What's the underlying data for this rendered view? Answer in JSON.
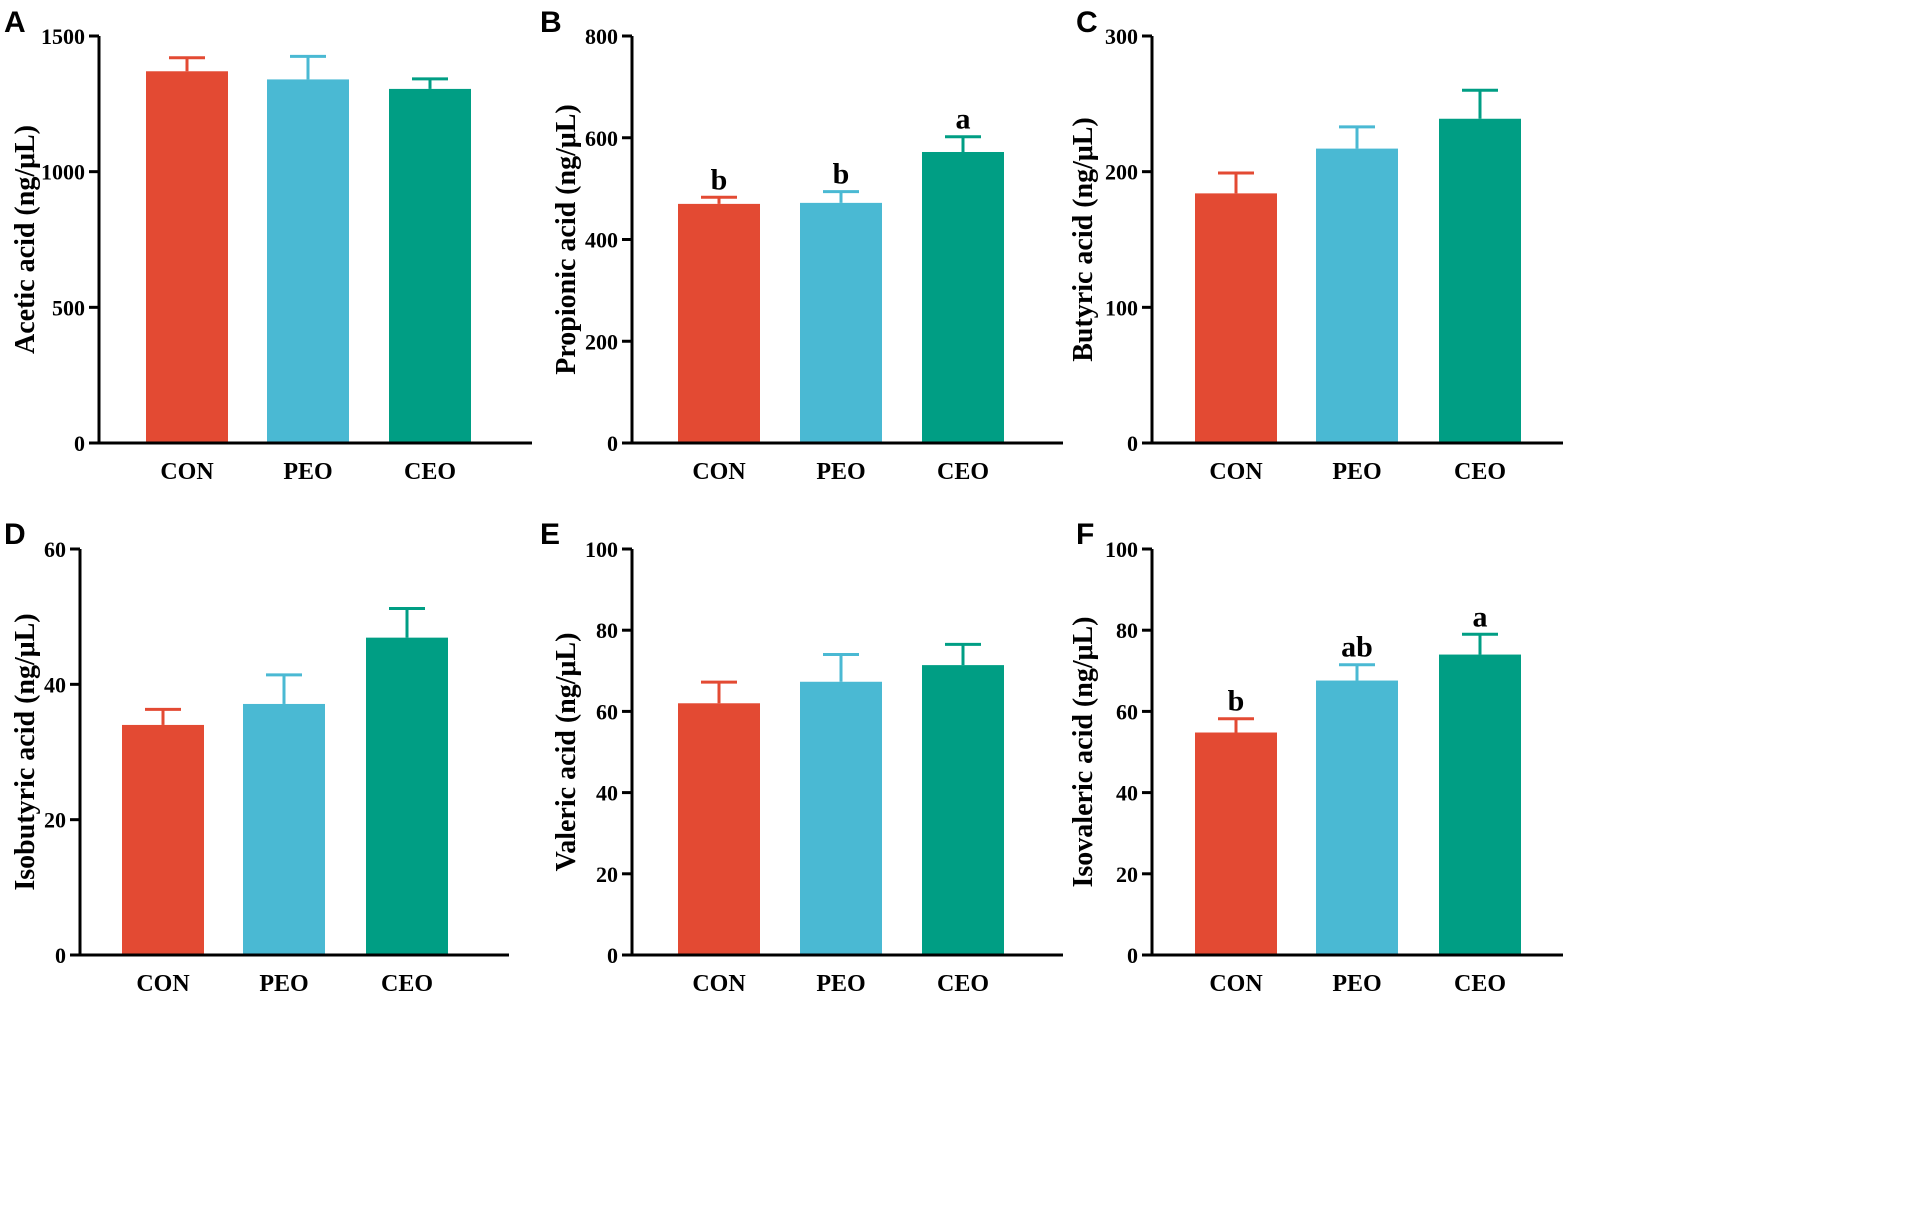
{
  "colors": {
    "CON": "#e34a33",
    "PEO": "#4ab9d3",
    "CEO": "#009e84"
  },
  "chart_data": [
    {
      "panel": "A",
      "type": "bar",
      "categories": [
        "CON",
        "PEO",
        "CEO"
      ],
      "values": [
        1370,
        1340,
        1305
      ],
      "errors": [
        50,
        85,
        37
      ],
      "significance": [
        "",
        "",
        ""
      ],
      "ylabel": "Acetic acid (ng/μL)",
      "ylim": [
        0,
        1500
      ],
      "yticks": [
        0,
        500,
        1000,
        1500
      ]
    },
    {
      "panel": "B",
      "type": "bar",
      "categories": [
        "CON",
        "PEO",
        "CEO"
      ],
      "values": [
        470,
        472,
        572
      ],
      "errors": [
        13,
        22,
        30
      ],
      "significance": [
        "b",
        "b",
        "a"
      ],
      "ylabel": "Propionic acid (ng/μL)",
      "ylim": [
        0,
        800
      ],
      "yticks": [
        0,
        200,
        400,
        600,
        800
      ]
    },
    {
      "panel": "C",
      "type": "bar",
      "categories": [
        "CON",
        "PEO",
        "CEO"
      ],
      "values": [
        184,
        217,
        239
      ],
      "errors": [
        15,
        16,
        21
      ],
      "significance": [
        "",
        "",
        ""
      ],
      "ylabel": "Butyric acid (ng/μL)",
      "ylim": [
        0,
        300
      ],
      "yticks": [
        0,
        100,
        200,
        300
      ]
    },
    {
      "panel": "D",
      "type": "bar",
      "categories": [
        "CON",
        "PEO",
        "CEO"
      ],
      "values": [
        34.0,
        37.1,
        46.9
      ],
      "errors": [
        2.3,
        4.3,
        4.3
      ],
      "significance": [
        "",
        "",
        ""
      ],
      "ylabel": "Isobutyric acid (ng/μL)",
      "ylim": [
        0,
        60
      ],
      "yticks": [
        0,
        20,
        40,
        60
      ]
    },
    {
      "panel": "E",
      "type": "bar",
      "categories": [
        "CON",
        "PEO",
        "CEO"
      ],
      "values": [
        62.0,
        67.3,
        71.4
      ],
      "errors": [
        5.2,
        6.7,
        5.1
      ],
      "significance": [
        "",
        "",
        ""
      ],
      "ylabel": "Valeric acid (ng/μL)",
      "ylim": [
        0,
        100
      ],
      "yticks": [
        0,
        20,
        40,
        60,
        80,
        100
      ]
    },
    {
      "panel": "F",
      "type": "bar",
      "categories": [
        "CON",
        "PEO",
        "CEO"
      ],
      "values": [
        54.8,
        67.6,
        74.0
      ],
      "errors": [
        3.4,
        3.9,
        5.0
      ],
      "significance": [
        "b",
        "ab",
        "a"
      ],
      "ylabel": "Isovaleric acid (ng/μL)",
      "ylim": [
        0,
        100
      ],
      "yticks": [
        0,
        20,
        40,
        60,
        80,
        100
      ]
    }
  ]
}
